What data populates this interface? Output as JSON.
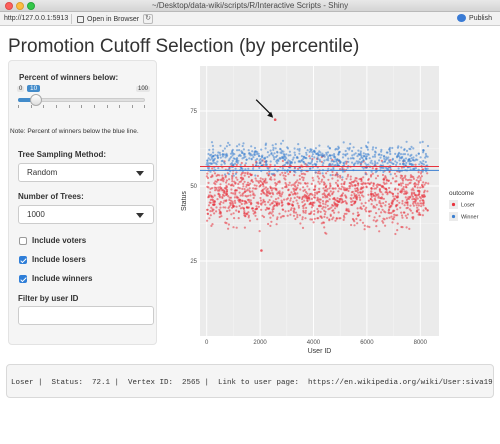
{
  "window": {
    "title": "~/Desktop/data-wiki/scripts/R/Interactive Scripts - Shiny"
  },
  "toolbar": {
    "url": "http://127.0.0.1:5913",
    "open_in_browser": "Open in Browser",
    "publish": "Publish"
  },
  "page": {
    "title": "Promotion Cutoff Selection (by percentile)"
  },
  "sidebar": {
    "slider": {
      "label": "Percent of winners below:",
      "min": "0",
      "max": "100",
      "value": "10",
      "value_fraction": 0.1
    },
    "note": "Note: Percent of winners below the blue line.",
    "tree_method": {
      "label": "Tree Sampling Method:",
      "selected": "Random"
    },
    "num_trees": {
      "label": "Number of Trees:",
      "selected": "1000"
    },
    "checkboxes": [
      {
        "label": "Include voters",
        "checked": false
      },
      {
        "label": "Include losers",
        "checked": true
      },
      {
        "label": "Include winners",
        "checked": true
      }
    ],
    "filter": {
      "label": "Filter by user ID",
      "value": ""
    }
  },
  "chart_data": {
    "type": "scatter",
    "xlabel": "User ID",
    "ylabel": "Status",
    "xlim": [
      -250,
      8700
    ],
    "ylim": [
      0,
      90
    ],
    "x_ticks": [
      "0",
      "2000",
      "4000",
      "6000",
      "8000"
    ],
    "y_ticks": [
      "25",
      "50",
      "75"
    ],
    "grid": true,
    "legend": {
      "title": "outcome",
      "placement": "right",
      "entries": [
        {
          "name": "Loser",
          "color": "#e8323c"
        },
        {
          "name": "Winner",
          "color": "#3b7fd0"
        }
      ]
    },
    "series": [
      {
        "name": "Loser",
        "x_range": [
          0,
          8300
        ],
        "y_range": [
          32,
          62
        ],
        "approx_count": 1400
      },
      {
        "name": "Winner",
        "x_range": [
          0,
          8300
        ],
        "y_range": [
          52,
          66
        ],
        "approx_count": 700
      }
    ],
    "outliers": [
      {
        "series": "Loser",
        "x": 2565,
        "y": 72.1
      },
      {
        "series": "Loser",
        "x": 2050,
        "y": 28.5
      }
    ],
    "cutoff_lines": [
      {
        "color": "#3b7fd0",
        "y": 55.2
      },
      {
        "color": "#e8323c",
        "y": 56.5
      }
    ],
    "annotation": {
      "type": "arrow",
      "target_x": 2565,
      "target_y": 72.1
    }
  },
  "output": {
    "text": "Loser |  Status:  72.1 |  Vertex ID:  2565 |  Link to user page:  https://en.wikipedia.org/wiki/User:siva1979\""
  }
}
